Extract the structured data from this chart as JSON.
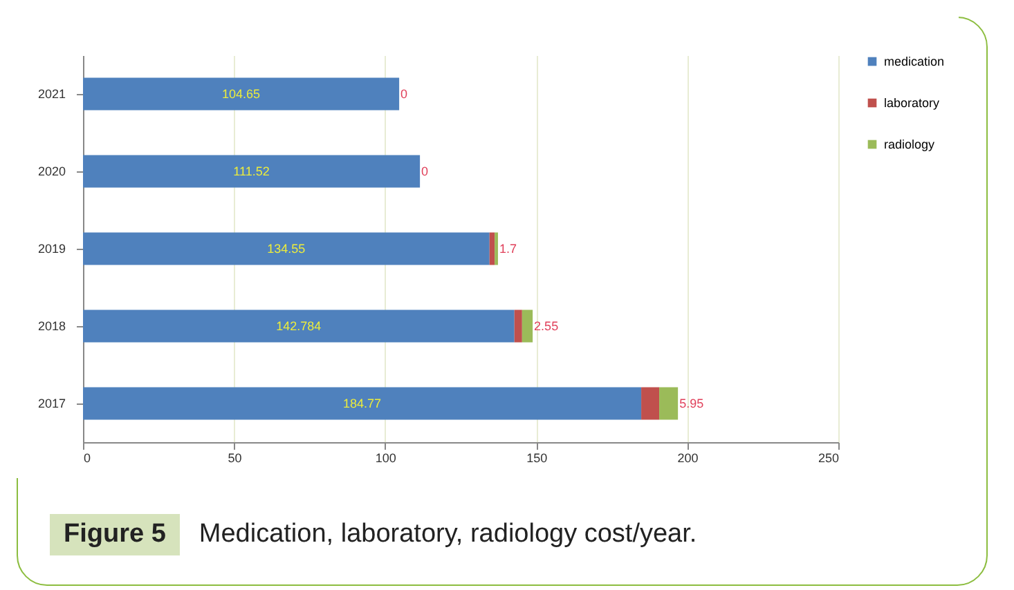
{
  "chart_data": {
    "type": "bar",
    "orientation": "horizontal",
    "stacked": true,
    "title": "Figure 5",
    "subtitle": "Medication, laboratory, radiology cost/year.",
    "categories": [
      "2021",
      "2020",
      "2019",
      "2018",
      "2017"
    ],
    "series": [
      {
        "name": "medication",
        "color": "#4f81bd",
        "values": [
          104.65,
          111.52,
          134.55,
          142.784,
          184.77
        ],
        "value_labels": [
          "104.65",
          "111.52",
          "134.55",
          "142.784",
          "184.77"
        ]
      },
      {
        "name": "laboratory",
        "color": "#c0504d",
        "values": [
          0,
          0,
          1.7,
          2.55,
          5.95
        ],
        "value_labels": [
          "0",
          "0",
          "1.7",
          "2.55",
          "5.95"
        ]
      },
      {
        "name": "radiology",
        "color": "#9bbb59",
        "values": [
          0,
          0,
          1.1,
          3.5,
          6.2
        ]
      }
    ],
    "xlim": [
      0,
      250
    ],
    "xticks": [
      0,
      50,
      100,
      150,
      200,
      250
    ],
    "grid": "x",
    "legend": "right"
  }
}
